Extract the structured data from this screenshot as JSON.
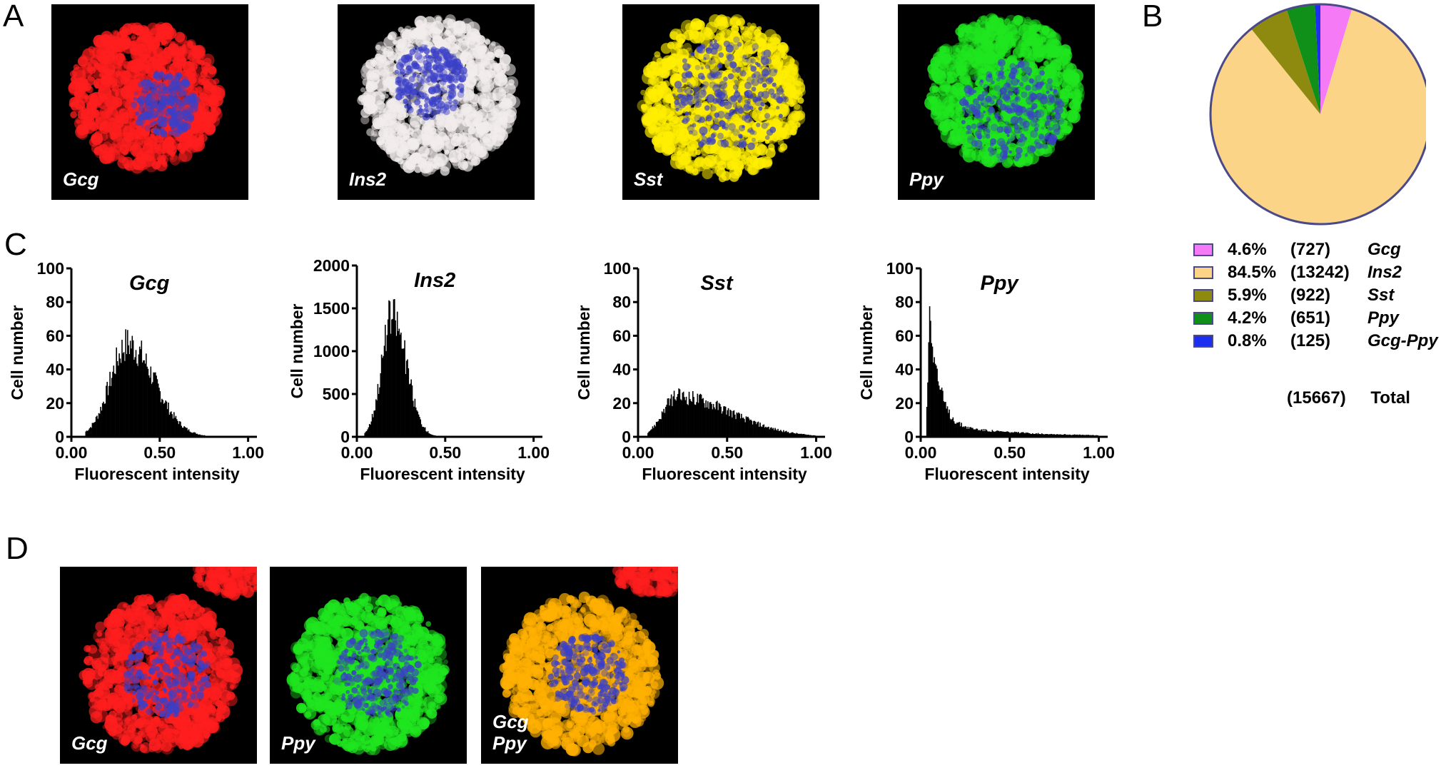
{
  "panels": {
    "a": "A",
    "b": "B",
    "c": "C",
    "d": "D"
  },
  "micrographs_a": [
    {
      "label": "Gcg",
      "color": "#ff1e1e"
    },
    {
      "label": "Ins2",
      "color": "#f2ecec"
    },
    {
      "label": "Sst",
      "color": "#ffee00"
    },
    {
      "label": "Ppy",
      "color": "#1fe61f"
    }
  ],
  "micrographs_d": [
    {
      "label": "Gcg",
      "color": "#ff1e1e"
    },
    {
      "label": "Ppy",
      "color": "#1fe61f"
    },
    {
      "label": "Gcg\nPpy",
      "color": "#ffb000"
    }
  ],
  "pie": {
    "slices": [
      {
        "name": "Gcg",
        "pct": "4.6%",
        "count": "(727)",
        "value": 727,
        "color": "#f57af5"
      },
      {
        "name": "Ins2",
        "pct": "84.5%",
        "count": "(13242)",
        "value": 13242,
        "color": "#fcd487"
      },
      {
        "name": "Sst",
        "pct": "5.9%",
        "count": "(922)",
        "value": 922,
        "color": "#8e8a10"
      },
      {
        "name": "Ppy",
        "pct": "4.2%",
        "count": "(651)",
        "value": 651,
        "color": "#119019"
      },
      {
        "name": "Gcg-Ppy",
        "pct": "0.8%",
        "count": "(125)",
        "value": 125,
        "color": "#1c2ef0"
      }
    ],
    "total_count": "(15667)",
    "total_label": "Total",
    "outline_color": "#4a4a8a"
  },
  "chart_data": [
    {
      "type": "pie",
      "categories": [
        "Gcg",
        "Ins2",
        "Sst",
        "Ppy",
        "Gcg-Ppy"
      ],
      "values": [
        727,
        13242,
        922,
        651,
        125
      ],
      "percents": [
        4.6,
        84.5,
        5.9,
        4.2,
        0.8
      ],
      "total": 15667,
      "legend": "bottom"
    },
    {
      "type": "bar",
      "title": "Gcg",
      "xlabel": "Fluorescent intensity",
      "ylabel": "Cell number",
      "xlim": [
        0,
        1.05
      ],
      "ylim": [
        0,
        100
      ],
      "xticks": [
        "0.00",
        "0.50",
        "1.00"
      ],
      "yticks": [
        "0",
        "20",
        "40",
        "60",
        "80",
        "100"
      ],
      "shape": {
        "kind": "gaussian",
        "peak_x": 0.32,
        "peak_y": 55,
        "sigma_left": 0.1,
        "sigma_right": 0.15,
        "x_start": 0.08,
        "x_end": 0.9
      }
    },
    {
      "type": "bar",
      "title": "Ins2",
      "xlabel": "Fluorescent intensity",
      "ylabel": "Cell number",
      "xlim": [
        0,
        1.05
      ],
      "ylim": [
        0,
        2000
      ],
      "xticks": [
        "0.00",
        "0.50",
        "1.00"
      ],
      "yticks": [
        "0",
        "500",
        "1000",
        "1500",
        "2000"
      ],
      "shape": {
        "kind": "gaussian",
        "peak_x": 0.2,
        "peak_y": 1400,
        "sigma_left": 0.06,
        "sigma_right": 0.08,
        "x_start": 0.04,
        "x_end": 0.7
      }
    },
    {
      "type": "bar",
      "title": "Sst",
      "xlabel": "Fluorescent intensity",
      "ylabel": "Cell number",
      "xlim": [
        0,
        1.05
      ],
      "ylim": [
        0,
        100
      ],
      "xticks": [
        "0.00",
        "0.50",
        "1.00"
      ],
      "yticks": [
        "0",
        "20",
        "40",
        "60",
        "80",
        "100"
      ],
      "shape": {
        "kind": "gaussian",
        "peak_x": 0.22,
        "peak_y": 24,
        "sigma_left": 0.08,
        "sigma_right": 0.3,
        "x_start": 0.05,
        "x_end": 1.0
      }
    },
    {
      "type": "bar",
      "title": "Ppy",
      "xlabel": "Fluorescent intensity",
      "ylabel": "Cell number",
      "xlim": [
        0,
        1.05
      ],
      "ylim": [
        0,
        100
      ],
      "xticks": [
        "0.00",
        "0.50",
        "1.00"
      ],
      "yticks": [
        "0",
        "20",
        "40",
        "60",
        "80",
        "100"
      ],
      "shape": {
        "kind": "spike-tail",
        "peak_x": 0.05,
        "peak_y": 78,
        "tail_y": 6,
        "x_start": 0.03,
        "x_end": 1.0
      }
    }
  ]
}
